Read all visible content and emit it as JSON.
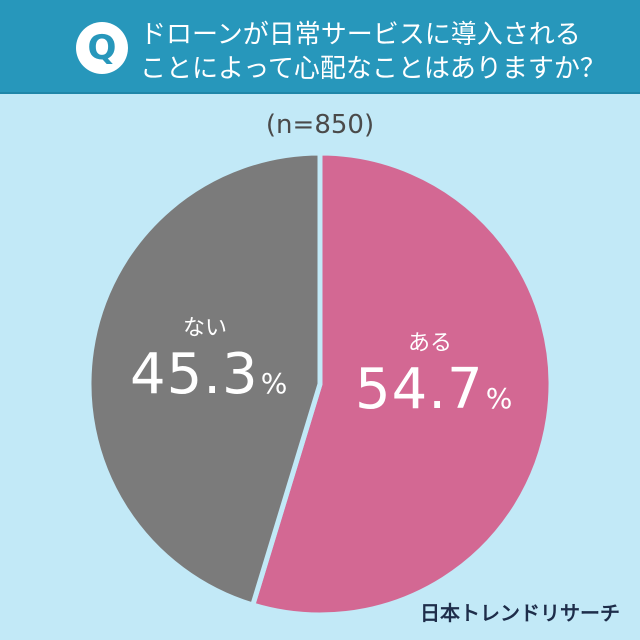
{
  "header": {
    "badge": "Q",
    "question_line1": "ドローンが日常サービスに導入される",
    "question_line2": "ことによって心配なことはありますか？"
  },
  "sample": "(n=850)",
  "slices": [
    {
      "label": "ある",
      "value": "54.7",
      "unit": "%",
      "color": "#d36893"
    },
    {
      "label": "ない",
      "value": "45.3",
      "unit": "%",
      "color": "#7b7b7b"
    }
  ],
  "credit": "日本トレンドリサーチ",
  "colors": {
    "background": "#c2e9f7",
    "header": "#2797bb",
    "yes": "#d36893",
    "no": "#7b7b7b"
  },
  "chart_data": {
    "type": "pie",
    "title": "ドローンが日常サービスに導入されることによって心配なことはありますか？",
    "subtitle": "(n=850)",
    "categories": [
      "ある",
      "ない"
    ],
    "values": [
      54.7,
      45.3
    ],
    "unit": "%",
    "start_angle": "12 o'clock, clockwise",
    "colors": [
      "#d36893",
      "#7b7b7b"
    ],
    "legend": "none (labels inside slices)",
    "source": "日本トレンドリサーチ"
  }
}
